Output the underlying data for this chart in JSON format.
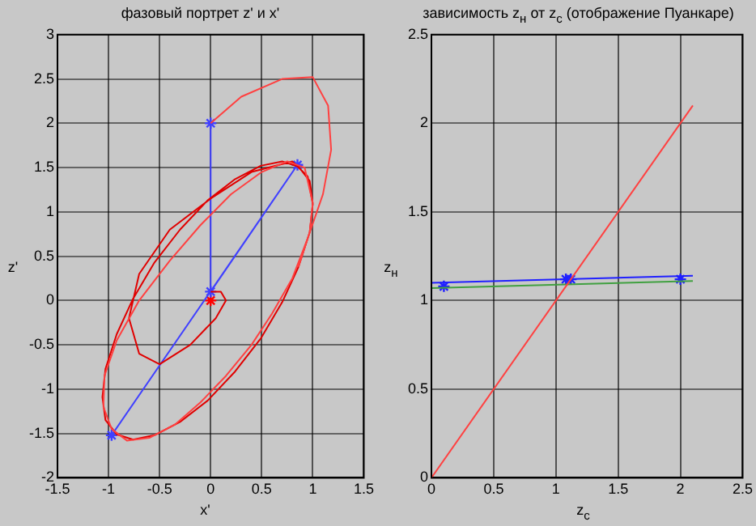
{
  "chart_data": [
    {
      "type": "line",
      "title": "фазовый портрет z' и x'",
      "xlabel": "x'",
      "ylabel": "z'",
      "xlim": [
        -1.5,
        1.5
      ],
      "xticks": [
        -1.5,
        -1,
        -0.5,
        0,
        0.5,
        1,
        1.5
      ],
      "ylim": [
        -2,
        3
      ],
      "yticks": [
        -2,
        -1.5,
        -1,
        -0.5,
        0,
        0.5,
        1,
        1.5,
        2,
        2.5,
        3
      ],
      "grid": true,
      "series": [
        {
          "color": "#ff4040",
          "marker": "none",
          "x": [
            0,
            0.3,
            0.7,
            1.0,
            1.15,
            1.18,
            1.1,
            0.95,
            0.8,
            0.6,
            0.4,
            0.15,
            -0.1,
            -0.35,
            -0.6,
            -0.82,
            -0.97,
            -1.05,
            -1.04,
            -0.92,
            -0.7,
            -0.4,
            -0.1,
            0.2,
            0.5,
            0.75,
            0.92,
            1.0,
            0.97,
            0.86
          ],
          "values": [
            2,
            2.3,
            2.5,
            2.52,
            2.2,
            1.7,
            1.2,
            0.7,
            0.25,
            -0.15,
            -0.5,
            -0.85,
            -1.15,
            -1.4,
            -1.55,
            -1.58,
            -1.45,
            -1.2,
            -0.85,
            -0.45,
            0.0,
            0.45,
            0.85,
            1.2,
            1.45,
            1.57,
            1.5,
            1.1,
            0.77,
            0.38
          ]
        },
        {
          "color": "#e00000",
          "marker": "none",
          "x": [
            0,
            0.1,
            0.15,
            0.05,
            -0.2,
            -0.5,
            -0.7,
            -0.8,
            -0.7,
            -0.4,
            0,
            0.4,
            0.8,
            0.95,
            1.0,
            0.97,
            0.86,
            0.7,
            0.49,
            0.24,
            -0.03,
            -0.3,
            -0.55,
            -0.76,
            -0.92,
            -1.03,
            -1.06,
            -1.03,
            -0.92,
            -0.76,
            -0.55,
            -0.3,
            -0.03,
            0.24,
            0.49,
            0.7,
            0.86,
            0.97,
            1.0
          ],
          "values": [
            0.1,
            0.1,
            0,
            -0.2,
            -0.5,
            -0.72,
            -0.6,
            -0.2,
            0.3,
            0.8,
            1.15,
            1.45,
            1.57,
            1.4,
            1.09,
            0.77,
            0.38,
            -0.02,
            -0.43,
            -0.8,
            -1.13,
            -1.37,
            -1.52,
            -1.57,
            -1.51,
            -1.35,
            -1.09,
            -0.77,
            -0.38,
            0.02,
            0.43,
            0.8,
            1.13,
            1.37,
            1.52,
            1.57,
            1.51,
            1.35,
            1.09
          ]
        },
        {
          "color": "#4040ff",
          "marker": "cross",
          "x": [
            0,
            0,
            0.85,
            -0.97
          ],
          "values": [
            2,
            0.1,
            1.53,
            -1.52
          ]
        },
        {
          "type": "scatter",
          "color": "#ff0000",
          "marker": "cross",
          "x": [
            0
          ],
          "values": [
            0
          ]
        }
      ]
    },
    {
      "type": "line",
      "title": "зависимость z$_{н}$ от z$_{с}$ (отображение Пуанкаре)",
      "xlabel": "z$_{с}$",
      "ylabel": "z$_{н}$",
      "xlim": [
        0,
        2.5
      ],
      "xticks": [
        0,
        0.5,
        1,
        1.5,
        2,
        2.5
      ],
      "ylim": [
        0,
        2.5
      ],
      "yticks": [
        0,
        0.5,
        1,
        1.5,
        2,
        2.5
      ],
      "grid": true,
      "series": [
        {
          "color": "#ff4040",
          "marker": "none",
          "x": [
            0,
            2.1
          ],
          "values": [
            0,
            2.1
          ]
        },
        {
          "color": "#40a040",
          "marker": "none",
          "x": [
            0,
            2.1
          ],
          "values": [
            1.07,
            1.11
          ]
        },
        {
          "color": "#2020ff",
          "marker": "none",
          "x": [
            0,
            2.1
          ],
          "values": [
            1.1,
            1.14
          ]
        },
        {
          "type": "scatter",
          "color": "#2020ff",
          "marker": "cross",
          "x": [
            0.1,
            1.08,
            1.12,
            2.0
          ],
          "values": [
            1.08,
            1.12,
            1.12,
            1.12
          ]
        }
      ]
    }
  ]
}
